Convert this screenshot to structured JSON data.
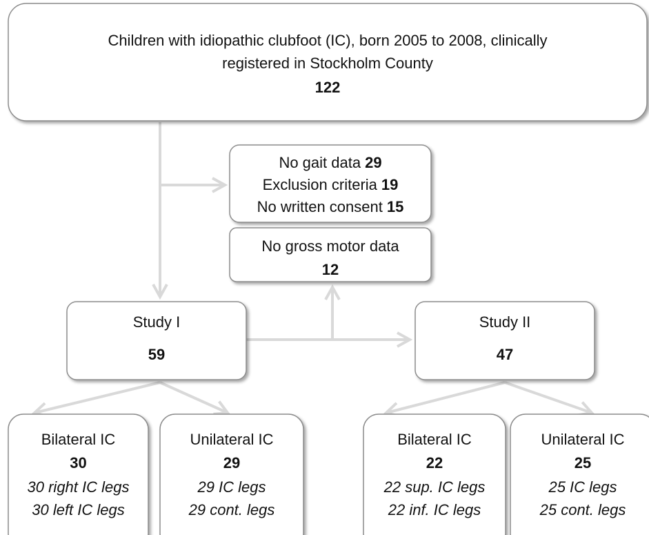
{
  "top": {
    "lines": [
      "Children with idiopathic clubfoot (IC), born 2005 to 2008, clinically",
      "registered in Stockholm County"
    ],
    "count": 122
  },
  "exclusions": [
    {
      "label": "No gait data",
      "count": 29
    },
    {
      "label": "Exclusion criteria",
      "count": 19
    },
    {
      "label": "No written consent",
      "count": 15
    }
  ],
  "gross_motor": {
    "label": "No gross motor data",
    "count": 12
  },
  "studies": [
    {
      "title": "Study I",
      "count": 59,
      "groups": [
        {
          "title": "Bilateral IC",
          "count": 30,
          "legs": [
            "30 right IC legs",
            "30 left IC legs"
          ]
        },
        {
          "title": "Unilateral IC",
          "count": 29,
          "legs": [
            "29 IC legs",
            "29 cont. legs"
          ]
        }
      ]
    },
    {
      "title": "Study II",
      "count": 47,
      "groups": [
        {
          "title": "Bilateral IC",
          "count": 22,
          "legs": [
            "22 sup. IC legs",
            "22 inf. IC legs"
          ]
        },
        {
          "title": "Unilateral IC",
          "count": 25,
          "legs": [
            "25 IC legs",
            "25 cont. legs"
          ]
        }
      ]
    }
  ]
}
